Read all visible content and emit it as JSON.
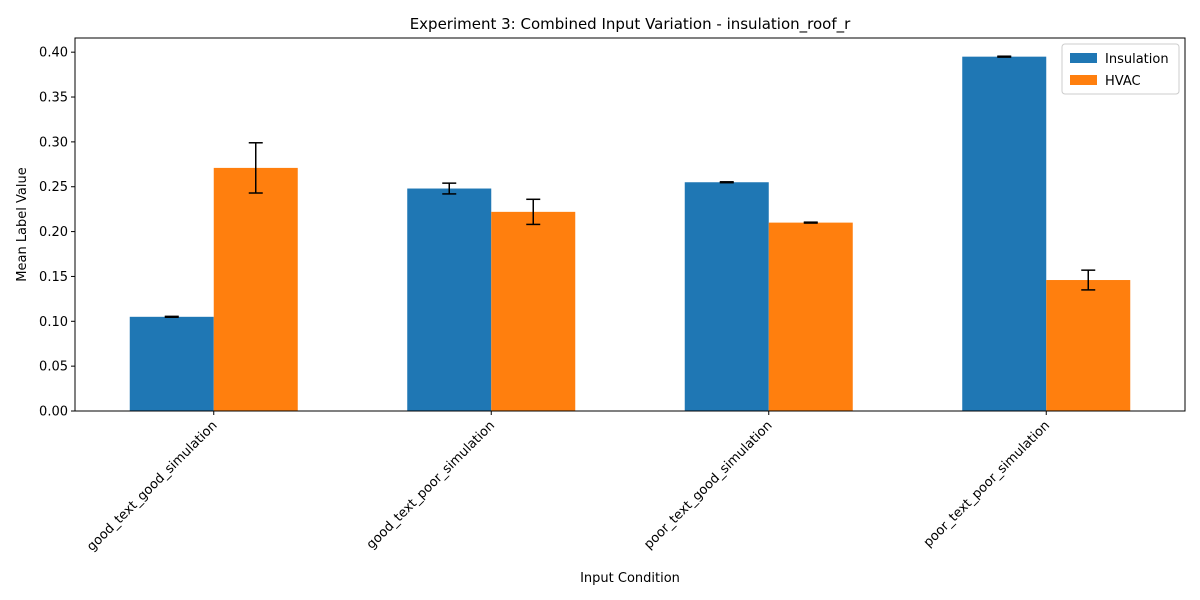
{
  "chart_data": {
    "type": "bar",
    "title": "Experiment 3: Combined Input Variation - insulation_roof_r",
    "xlabel": "Input Condition",
    "ylabel": "Mean Label Value",
    "categories": [
      "good_text_good_simulation",
      "good_text_poor_simulation",
      "poor_text_good_simulation",
      "poor_text_poor_simulation"
    ],
    "series": [
      {
        "name": "Insulation",
        "color": "#1f77b4",
        "values": [
          0.105,
          0.248,
          0.255,
          0.395
        ],
        "errors": [
          0.0005,
          0.006,
          0.0005,
          0.0005
        ]
      },
      {
        "name": "HVAC",
        "color": "#ff7f0e",
        "values": [
          0.271,
          0.222,
          0.21,
          0.146
        ],
        "errors": [
          0.028,
          0.014,
          0.0005,
          0.011
        ]
      }
    ],
    "ylim": [
      0,
      0.4158
    ],
    "yticks": [
      "0.00",
      "0.05",
      "0.10",
      "0.15",
      "0.20",
      "0.25",
      "0.30",
      "0.35",
      "0.40"
    ],
    "legend_position": "top-right",
    "grid": false
  }
}
